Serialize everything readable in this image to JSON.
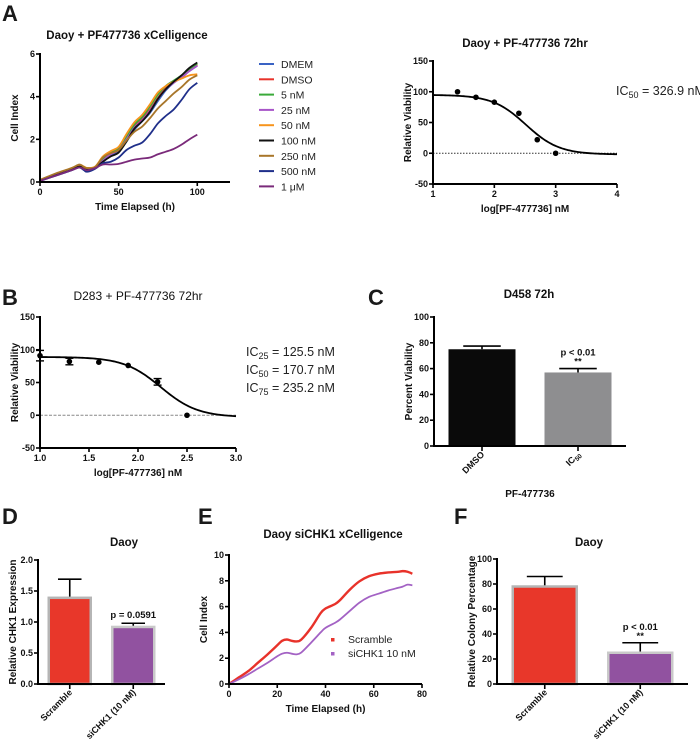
{
  "panels": {
    "A": "A",
    "B": "B",
    "C": "C",
    "D": "D",
    "E": "E",
    "F": "F"
  },
  "chart_data": [
    {
      "id": "A1",
      "type": "line",
      "title": "Daoy + PF477736 xCelligence",
      "xlabel": "Time Elapsed (h)",
      "ylabel": "Cell Index",
      "xlim": [
        0,
        110
      ],
      "ylim": [
        0,
        6
      ],
      "xticks": [
        0,
        50,
        100
      ],
      "yticks": [
        0,
        2,
        4,
        6
      ],
      "legend_position": "right",
      "x": [
        0,
        10,
        20,
        25,
        28,
        30,
        35,
        40,
        45,
        50,
        55,
        60,
        65,
        70,
        75,
        80,
        85,
        90,
        95,
        100
      ],
      "series": [
        {
          "name": "DMEM",
          "color": "#3a63c4",
          "values": [
            0.05,
            0.3,
            0.55,
            0.7,
            0.6,
            0.55,
            0.65,
            0.95,
            1.25,
            1.45,
            1.9,
            2.45,
            2.85,
            3.25,
            3.8,
            4.3,
            4.65,
            4.9,
            5.2,
            5.45
          ]
        },
        {
          "name": "DMSO",
          "color": "#e8322a",
          "values": [
            0.08,
            0.35,
            0.6,
            0.72,
            0.65,
            0.6,
            0.68,
            1.05,
            1.35,
            1.5,
            2.0,
            2.6,
            2.95,
            3.4,
            3.95,
            4.4,
            4.7,
            4.95,
            5.25,
            5.5
          ]
        },
        {
          "name": "5 nM",
          "color": "#3aaa3a",
          "values": [
            0.08,
            0.35,
            0.62,
            0.75,
            0.7,
            0.65,
            0.7,
            1.1,
            1.4,
            1.6,
            2.1,
            2.7,
            3.05,
            3.55,
            4.1,
            4.5,
            4.75,
            5.0,
            5.3,
            5.55
          ]
        },
        {
          "name": "25 nM",
          "color": "#a855c8",
          "values": [
            0.06,
            0.33,
            0.58,
            0.72,
            0.65,
            0.6,
            0.68,
            1.0,
            1.3,
            1.5,
            2.0,
            2.55,
            2.9,
            3.35,
            3.9,
            4.35,
            4.65,
            4.9,
            5.2,
            5.45
          ]
        },
        {
          "name": "50 nM",
          "color": "#f7941d",
          "values": [
            0.1,
            0.38,
            0.65,
            0.8,
            0.72,
            0.66,
            0.72,
            1.2,
            1.45,
            1.65,
            2.25,
            2.8,
            3.15,
            3.65,
            4.2,
            4.5,
            4.7,
            4.85,
            5.0,
            5.05
          ]
        },
        {
          "name": "100 nM",
          "color": "#111111",
          "values": [
            0.06,
            0.33,
            0.58,
            0.72,
            0.65,
            0.6,
            0.66,
            0.95,
            1.2,
            1.38,
            1.9,
            2.5,
            2.85,
            3.3,
            3.9,
            4.35,
            4.7,
            5.0,
            5.35,
            5.6
          ]
        },
        {
          "name": "250 nM",
          "color": "#a8762a",
          "values": [
            0.1,
            0.4,
            0.65,
            0.82,
            0.7,
            0.65,
            0.7,
            1.15,
            1.35,
            1.5,
            1.95,
            2.35,
            2.6,
            3.0,
            3.45,
            3.8,
            4.15,
            4.45,
            4.8,
            5.0
          ]
        },
        {
          "name": "500 nM",
          "color": "#1f2f8a",
          "values": [
            0.05,
            0.3,
            0.55,
            0.68,
            0.55,
            0.48,
            0.62,
            0.88,
            0.95,
            1.15,
            1.5,
            1.7,
            1.85,
            2.25,
            2.75,
            3.1,
            3.4,
            3.85,
            4.35,
            4.65
          ]
        },
        {
          "name": "1 μM",
          "color": "#7a2a7a",
          "values": [
            0.05,
            0.3,
            0.55,
            0.68,
            0.6,
            0.55,
            0.65,
            0.82,
            0.82,
            0.85,
            0.95,
            1.05,
            1.1,
            1.15,
            1.3,
            1.42,
            1.55,
            1.75,
            2.0,
            2.22
          ]
        }
      ]
    },
    {
      "id": "A2",
      "type": "scatter",
      "title": "Daoy + PF-477736 72hr",
      "xlabel": "log[PF-477736] nM",
      "ylabel": "Relative Viability",
      "xlim": [
        1,
        4
      ],
      "ylim": [
        -50,
        150
      ],
      "xticks": [
        1,
        2,
        3,
        4
      ],
      "yticks": [
        -50,
        0,
        50,
        100,
        150
      ],
      "points": {
        "x": [
          1.4,
          1.7,
          2.0,
          2.4,
          2.7,
          3.0
        ],
        "y": [
          100,
          91,
          83,
          65,
          22,
          0
        ]
      },
      "fit": {
        "top": 95,
        "bottom": -2,
        "logIC50": 2.514,
        "hill": -1.6,
        "x_range": [
          1,
          4
        ]
      },
      "reference_line": {
        "y": 0,
        "style": "dotted"
      },
      "annotation": {
        "prefix": "IC",
        "subscript": "50",
        "text": " = 326.9 nM"
      }
    },
    {
      "id": "B",
      "type": "scatter",
      "title": "D283 + PF-477736 72hr",
      "xlabel": "log[PF-477736] nM",
      "ylabel": "Relative Viability",
      "xlim": [
        1.0,
        3.0
      ],
      "ylim": [
        -50,
        150
      ],
      "xticks": [
        "1.0",
        "1.5",
        "2.0",
        "2.5",
        "3.0"
      ],
      "yticks": [
        -50,
        0,
        50,
        100,
        150
      ],
      "points": {
        "x": [
          1.0,
          1.3,
          1.6,
          1.9,
          2.2,
          2.5
        ],
        "y": [
          91,
          82,
          81,
          76,
          51,
          0
        ],
        "err": [
          8,
          5,
          0,
          0,
          5,
          0
        ]
      },
      "fit": {
        "top": 89,
        "bottom": -3,
        "logIC50": 2.232,
        "hill": -2.3,
        "x_range": [
          1.0,
          3.0
        ]
      },
      "reference_line": {
        "y": 0,
        "style": "dashed"
      },
      "annotations": [
        {
          "prefix": "IC",
          "subscript": "25",
          "text": " = 125.5 nM"
        },
        {
          "prefix": "IC",
          "subscript": "50",
          "text": " = 170.7 nM"
        },
        {
          "prefix": "IC",
          "subscript": "75",
          "text": " = 235.2 nM"
        }
      ]
    },
    {
      "id": "C",
      "type": "bar",
      "title": "D458 72h",
      "xlabel": "PF-477736",
      "ylabel": "Percent Viability",
      "ylim": [
        0,
        100
      ],
      "yticks": [
        0,
        20,
        40,
        60,
        80,
        100
      ],
      "categories": [
        "DMSO",
        "IC50"
      ],
      "category_labels": [
        {
          "main": "DMSO",
          "sub": ""
        },
        {
          "main": "IC",
          "sub": "50"
        }
      ],
      "values": [
        75,
        57
      ],
      "errors": [
        2.5,
        3
      ],
      "colors": [
        "#0a0a0a",
        "#8e8e90"
      ],
      "significance": [
        null,
        {
          "p": "p < 0.01",
          "stars": "**"
        }
      ]
    },
    {
      "id": "D",
      "type": "bar",
      "title": "Daoy",
      "xlabel": "",
      "ylabel": "Relative CHK1 Expression",
      "ylim": [
        0,
        2.0
      ],
      "yticks": [
        "0.0",
        "0.5",
        "1.0",
        "1.5",
        "2.0"
      ],
      "categories": [
        "Scramble",
        "siCHK1 (10 nM)"
      ],
      "values": [
        1.39,
        0.92
      ],
      "errors": [
        0.3,
        0.06
      ],
      "colors": [
        "#e8372a",
        "#9152a0"
      ],
      "significance": [
        null,
        {
          "p": "p = 0.0591",
          "stars": ""
        }
      ]
    },
    {
      "id": "E",
      "type": "line",
      "title": "Daoy siCHK1 xCelligence",
      "xlabel": "Time Elapsed (h)",
      "ylabel": "Cell Index",
      "xlim": [
        0,
        80
      ],
      "ylim": [
        0,
        10
      ],
      "xticks": [
        0,
        20,
        40,
        60,
        80
      ],
      "yticks": [
        0,
        2,
        4,
        6,
        8,
        10
      ],
      "legend_position": "inside-bottom-right",
      "x": [
        0,
        4,
        8,
        12,
        16,
        20,
        22,
        24,
        26,
        28,
        30,
        34,
        38,
        40,
        44,
        46,
        50,
        54,
        58,
        62,
        66,
        70,
        72,
        74,
        76
      ],
      "series": [
        {
          "name": "Scramble",
          "color": "#e8322a",
          "values": [
            0,
            0.5,
            1.0,
            1.65,
            2.3,
            3.0,
            3.35,
            3.45,
            3.35,
            3.3,
            3.45,
            4.35,
            5.5,
            5.85,
            6.2,
            6.5,
            7.3,
            7.95,
            8.35,
            8.55,
            8.65,
            8.7,
            8.75,
            8.7,
            8.55
          ]
        },
        {
          "name": "siCHK1 10 nM",
          "color": "#a362c4",
          "values": [
            0,
            0.35,
            0.75,
            1.2,
            1.65,
            2.15,
            2.35,
            2.42,
            2.35,
            2.3,
            2.45,
            3.2,
            4.0,
            4.35,
            4.75,
            5.0,
            5.65,
            6.3,
            6.75,
            7.0,
            7.25,
            7.45,
            7.55,
            7.7,
            7.65
          ]
        }
      ]
    },
    {
      "id": "F",
      "type": "bar",
      "title": "Daoy",
      "xlabel": "",
      "ylabel": "Relative Colony Percentage",
      "ylim": [
        0,
        100
      ],
      "yticks": [
        0,
        20,
        40,
        60,
        80,
        100
      ],
      "categories": [
        "Scramble",
        "siCHK1 (10 nM)"
      ],
      "values": [
        78,
        25
      ],
      "errors": [
        8,
        8
      ],
      "colors": [
        "#e8372a",
        "#9152a0"
      ],
      "significance": [
        null,
        {
          "p": "p < 0.01",
          "stars": "**"
        }
      ]
    }
  ]
}
